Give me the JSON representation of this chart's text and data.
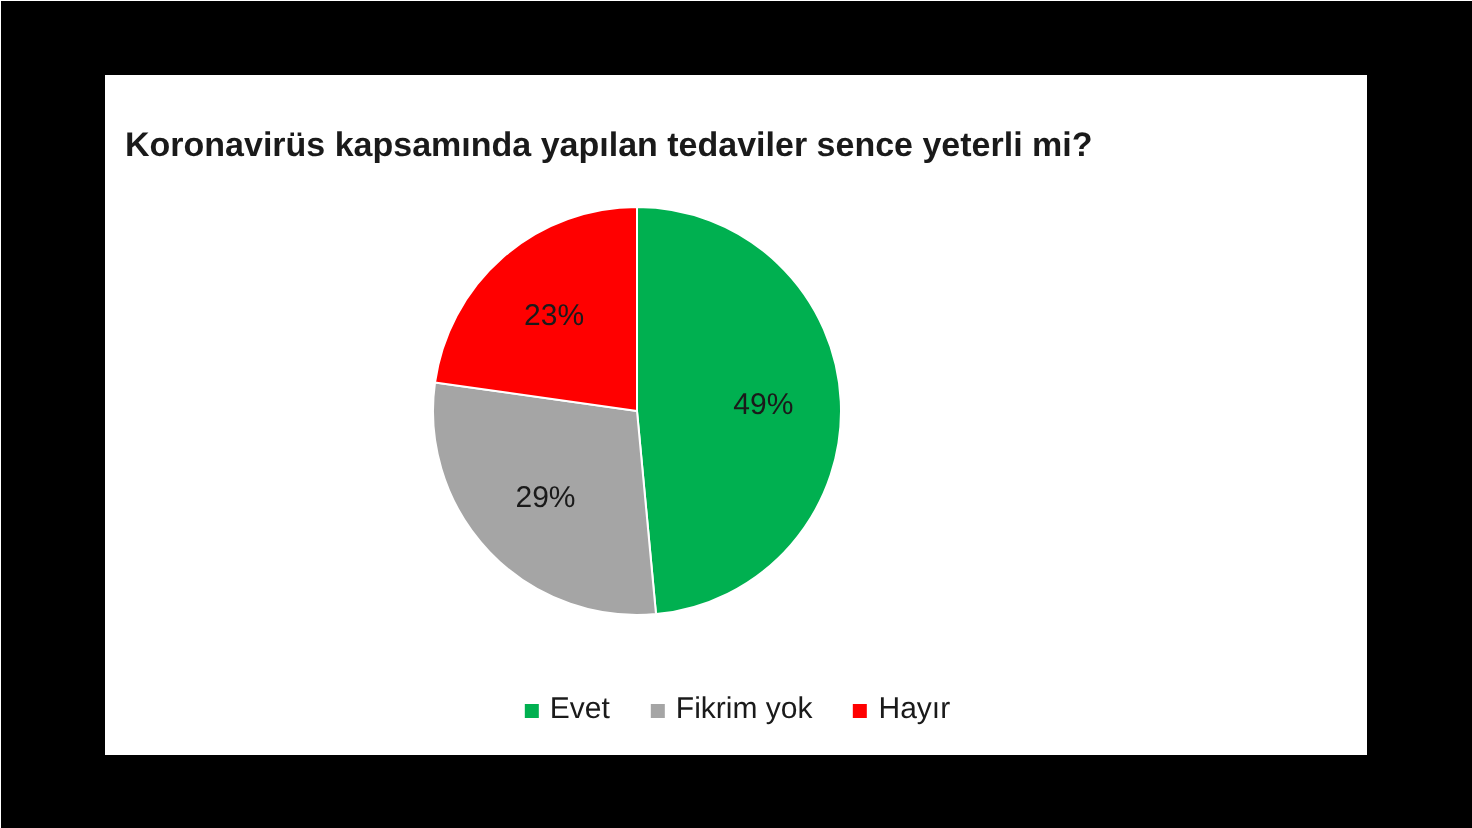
{
  "chart_data": {
    "type": "pie",
    "title": "Koronavirüs kapsamında yapılan tedaviler sence yeterli mi?",
    "categories": [
      "Evet",
      "Fikrim yok",
      "Hayır"
    ],
    "values": [
      49,
      29,
      23
    ],
    "colors": [
      "#00b050",
      "#a5a5a5",
      "#ff0000"
    ],
    "value_labels": [
      "49%",
      "29%",
      "23%"
    ],
    "legend": "bottom"
  }
}
